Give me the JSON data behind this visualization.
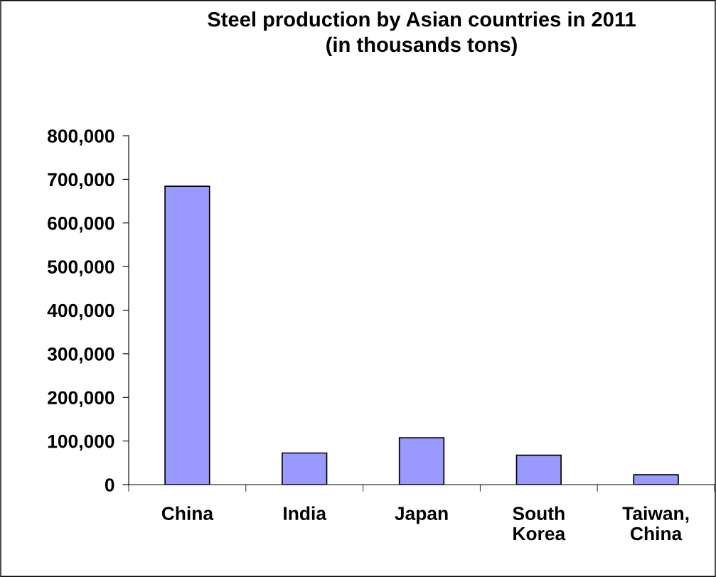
{
  "chart_data": {
    "type": "bar",
    "title": "Steel production by Asian countries in 2011\n(in thousands tons)",
    "categories": [
      "China",
      "India",
      "Japan",
      "South\nKorea",
      "Taiwan,\nChina"
    ],
    "values": [
      684000,
      72500,
      107600,
      67300,
      22500
    ],
    "color": "#9999ff",
    "ylim": [
      0,
      800000
    ],
    "yticks": [
      {
        "value": 0,
        "label": "0"
      },
      {
        "value": 100000,
        "label": "100,000"
      },
      {
        "value": 200000,
        "label": "200,000"
      },
      {
        "value": 300000,
        "label": "300,000"
      },
      {
        "value": 400000,
        "label": "400,000"
      },
      {
        "value": 500000,
        "label": "500,000"
      },
      {
        "value": 600000,
        "label": "600,000"
      },
      {
        "value": 700000,
        "label": "700,000"
      },
      {
        "value": 800000,
        "label": "800,000"
      }
    ],
    "grid": false
  }
}
